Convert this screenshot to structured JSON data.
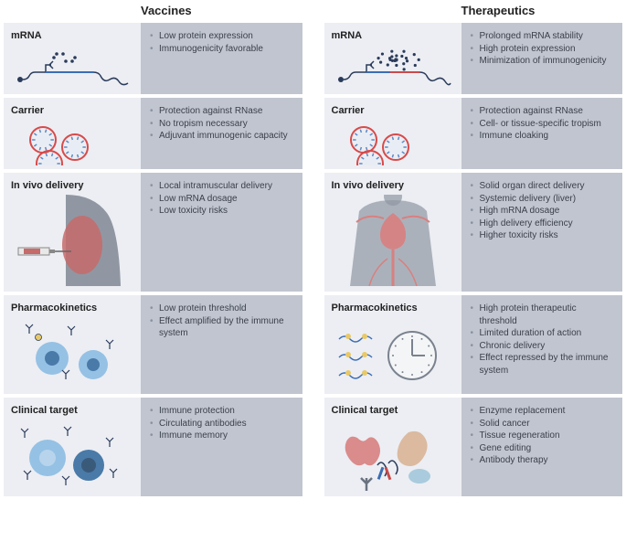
{
  "columns": [
    {
      "header": "Vaccines",
      "rows": [
        {
          "id": "mrna",
          "title": "mRNA",
          "height": "short",
          "bullets": [
            "Low protein expression",
            "Immunogenicity favorable"
          ],
          "illus": "mrna-vaccine"
        },
        {
          "id": "carrier",
          "title": "Carrier",
          "height": "short",
          "bullets": [
            "Protection against RNase",
            "No tropism necessary",
            "Adjuvant immunogenic capacity"
          ],
          "illus": "carrier"
        },
        {
          "id": "invivo",
          "title": "In vivo delivery",
          "height": "tall",
          "bullets": [
            "Local intramuscular delivery",
            "Low mRNA dosage",
            "Low toxicity risks"
          ],
          "illus": "arm-injection"
        },
        {
          "id": "pk",
          "title": "Pharmacokinetics",
          "height": "",
          "bullets": [
            "Low protein threshold",
            "Effect amplified by the immune system"
          ],
          "illus": "cells-few"
        },
        {
          "id": "target",
          "title": "Clinical target",
          "height": "",
          "bullets": [
            "Immune protection",
            "Circulating antibodies",
            "Immune memory"
          ],
          "illus": "cells-antibodies"
        }
      ]
    },
    {
      "header": "Therapeutics",
      "rows": [
        {
          "id": "mrna",
          "title": "mRNA",
          "height": "short",
          "bullets": [
            "Prolonged mRNA stability",
            "High protein expression",
            "Minimization of immunogenicity"
          ],
          "illus": "mrna-therapeutic"
        },
        {
          "id": "carrier",
          "title": "Carrier",
          "height": "short",
          "bullets": [
            "Protection against RNase",
            "Cell- or tissue-specific tropism",
            "Immune cloaking"
          ],
          "illus": "carrier"
        },
        {
          "id": "invivo",
          "title": "In vivo delivery",
          "height": "tall",
          "bullets": [
            "Solid organ direct delivery",
            "Systemic delivery (liver)",
            "High mRNA dosage",
            "High delivery efficiency",
            "Higher toxicity risks"
          ],
          "illus": "torso-vascular"
        },
        {
          "id": "pk",
          "title": "Pharmacokinetics",
          "height": "",
          "bullets": [
            "High protein therapeutic threshold",
            "Limited duration of action",
            "Chronic delivery",
            "Effect repressed by the immune system"
          ],
          "illus": "mrna-clock"
        },
        {
          "id": "target",
          "title": "Clinical target",
          "height": "",
          "bullets": [
            "Enzyme replacement",
            "Solid cancer",
            "Tissue regeneration",
            "Gene editing",
            "Antibody therapy"
          ],
          "illus": "organs-mixed"
        }
      ]
    }
  ],
  "colors": {
    "label_bg": "#eceef3",
    "desc_bg": "#c0c5cf",
    "text": "#3a3f4a",
    "mrna_blue": "#3b6db5",
    "mrna_red": "#c94a4a",
    "dark_navy": "#2a3a5a",
    "cell_blue": "#86b8e0",
    "cell_dark": "#4a7aa8",
    "carrier_red": "#d84a4a",
    "carrier_blue": "#5a8ac8",
    "body_gray": "#9097a2",
    "muscle": "#c76a6a",
    "vascular": "#d88080",
    "clock_gray": "#7a828e"
  }
}
